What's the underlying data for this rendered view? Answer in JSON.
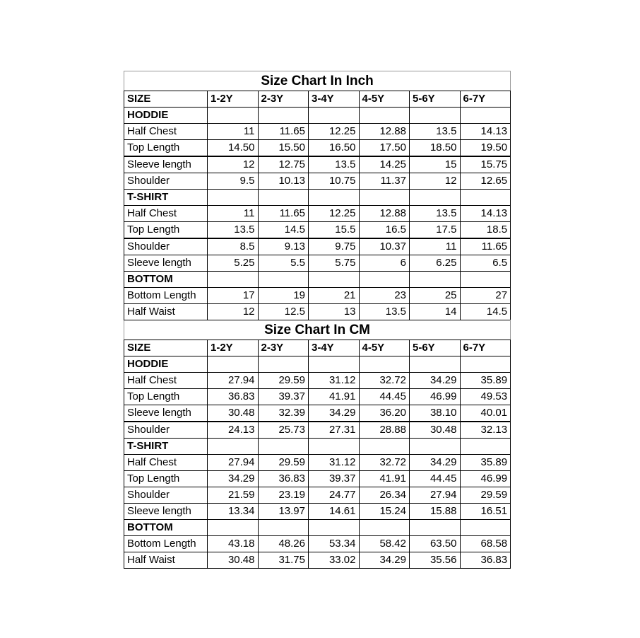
{
  "page": {
    "background": "#ffffff",
    "grid_border_color": "#000000",
    "title_outer_border_color": "#999999",
    "text_color": "#000000"
  },
  "chart_data": [
    {
      "type": "table",
      "title": "Size Chart In Inch",
      "columns": [
        "SIZE",
        "1-2Y",
        "2-3Y",
        "3-4Y",
        "4-5Y",
        "5-6Y",
        "6-7Y"
      ],
      "sections": [
        {
          "name": "HODDIE",
          "rows": [
            {
              "label": "Half Chest",
              "values": [
                "11",
                "11.65",
                "12.25",
                "12.88",
                "13.5",
                "14.13"
              ]
            },
            {
              "label": "Top Length",
              "values": [
                "14.50",
                "15.50",
                "16.50",
                "17.50",
                "18.50",
                "19.50"
              ],
              "thick_bottom": true
            },
            {
              "label": "Sleeve length",
              "values": [
                "12",
                "12.75",
                "13.5",
                "14.25",
                "15",
                "15.75"
              ]
            },
            {
              "label": "Shoulder",
              "values": [
                "9.5",
                "10.13",
                "10.75",
                "11.37",
                "12",
                "12.65"
              ]
            }
          ]
        },
        {
          "name": "T-SHIRT",
          "rows": [
            {
              "label": "Half Chest",
              "values": [
                "11",
                "11.65",
                "12.25",
                "12.88",
                "13.5",
                "14.13"
              ]
            },
            {
              "label": "Top Length",
              "values": [
                "13.5",
                "14.5",
                "15.5",
                "16.5",
                "17.5",
                "18.5"
              ],
              "thick_bottom": true
            },
            {
              "label": "Shoulder",
              "values": [
                "8.5",
                "9.13",
                "9.75",
                "10.37",
                "11",
                "11.65"
              ]
            },
            {
              "label": "Sleeve length",
              "values": [
                "5.25",
                "5.5",
                "5.75",
                "6",
                "6.25",
                "6.5"
              ]
            }
          ]
        },
        {
          "name": "BOTTOM",
          "rows": [
            {
              "label": "Bottom Length",
              "values": [
                "17",
                "19",
                "21",
                "23",
                "25",
                "27"
              ]
            },
            {
              "label": "Half Waist",
              "values": [
                "12",
                "12.5",
                "13",
                "13.5",
                "14",
                "14.5"
              ]
            }
          ]
        }
      ]
    },
    {
      "type": "table",
      "title": "Size Chart In CM",
      "columns": [
        "SIZE",
        "1-2Y",
        "2-3Y",
        "3-4Y",
        "4-5Y",
        "5-6Y",
        "6-7Y"
      ],
      "sections": [
        {
          "name": "HODDIE",
          "rows": [
            {
              "label": "Half Chest",
              "values": [
                "27.94",
                "29.59",
                "31.12",
                "32.72",
                "34.29",
                "35.89"
              ]
            },
            {
              "label": "Top Length",
              "values": [
                "36.83",
                "39.37",
                "41.91",
                "44.45",
                "46.99",
                "49.53"
              ]
            },
            {
              "label": "Sleeve length",
              "values": [
                "30.48",
                "32.39",
                "34.29",
                "36.20",
                "38.10",
                "40.01"
              ],
              "thick_bottom": true
            },
            {
              "label": "Shoulder",
              "values": [
                "24.13",
                "25.73",
                "27.31",
                "28.88",
                "30.48",
                "32.13"
              ]
            }
          ]
        },
        {
          "name": "T-SHIRT",
          "rows": [
            {
              "label": "Half Chest",
              "values": [
                "27.94",
                "29.59",
                "31.12",
                "32.72",
                "34.29",
                "35.89"
              ]
            },
            {
              "label": "Top Length",
              "values": [
                "34.29",
                "36.83",
                "39.37",
                "41.91",
                "44.45",
                "46.99"
              ]
            },
            {
              "label": "Shoulder",
              "values": [
                "21.59",
                "23.19",
                "24.77",
                "26.34",
                "27.94",
                "29.59"
              ]
            },
            {
              "label": "Sleeve length",
              "values": [
                "13.34",
                "13.97",
                "14.61",
                "15.24",
                "15.88",
                "16.51"
              ]
            }
          ]
        },
        {
          "name": "BOTTOM",
          "rows": [
            {
              "label": "Bottom Length",
              "values": [
                "43.18",
                "48.26",
                "53.34",
                "58.42",
                "63.50",
                "68.58"
              ]
            },
            {
              "label": "Half Waist",
              "values": [
                "30.48",
                "31.75",
                "33.02",
                "34.29",
                "35.56",
                "36.83"
              ]
            }
          ]
        }
      ]
    }
  ]
}
